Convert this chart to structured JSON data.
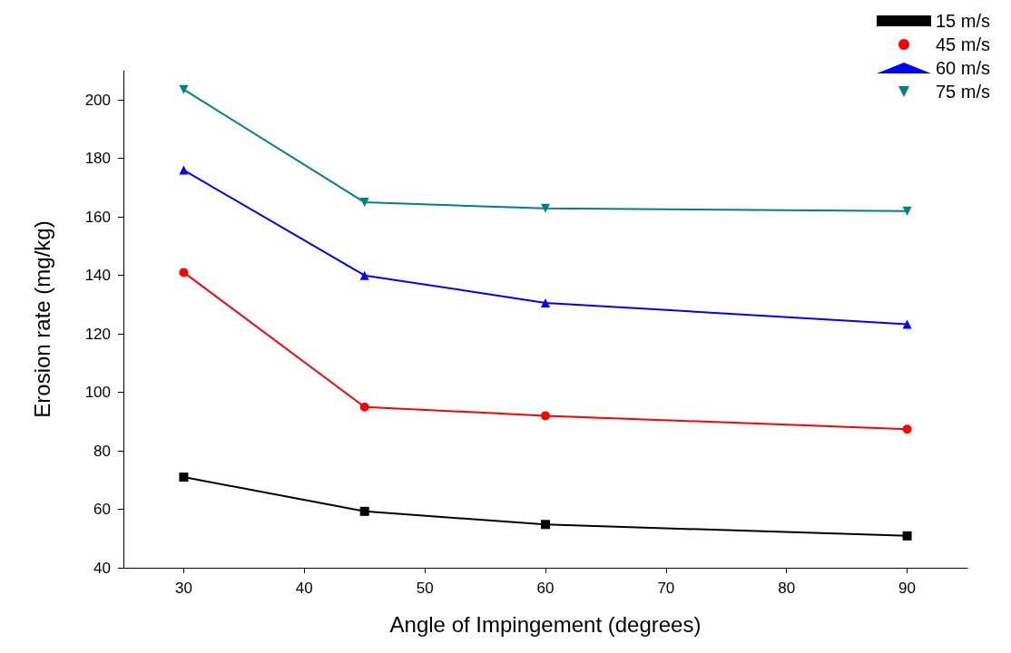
{
  "chart_data": {
    "type": "line",
    "xlabel": "Angle of Impingement (degrees)",
    "ylabel": "Erosion rate (mg/kg)",
    "x": [
      30,
      45,
      60,
      90
    ],
    "series": [
      {
        "name": "15 m/s",
        "color": "#000000",
        "marker": "square",
        "values": [
          71,
          59.3,
          54.8,
          50.9
        ]
      },
      {
        "name": "45 m/s",
        "color": "#ff0000",
        "marker": "circle",
        "values": [
          141,
          95,
          92,
          87.4
        ]
      },
      {
        "name": "60 m/s",
        "color": "#0000ff",
        "marker": "triangle",
        "values": [
          176,
          140,
          130.6,
          123.3
        ]
      },
      {
        "name": "75 m/s",
        "color": "#008080",
        "marker": "triangle-down",
        "values": [
          203.6,
          165,
          162.9,
          162
        ]
      }
    ],
    "xlim": [
      25,
      95
    ],
    "xticks": [
      30,
      40,
      50,
      60,
      70,
      80,
      90
    ],
    "ylim": [
      40,
      210
    ],
    "yticks": [
      40,
      60,
      80,
      100,
      120,
      140,
      160,
      180,
      200
    ],
    "grid": false,
    "legend": "top right",
    "line_style": "solid"
  }
}
